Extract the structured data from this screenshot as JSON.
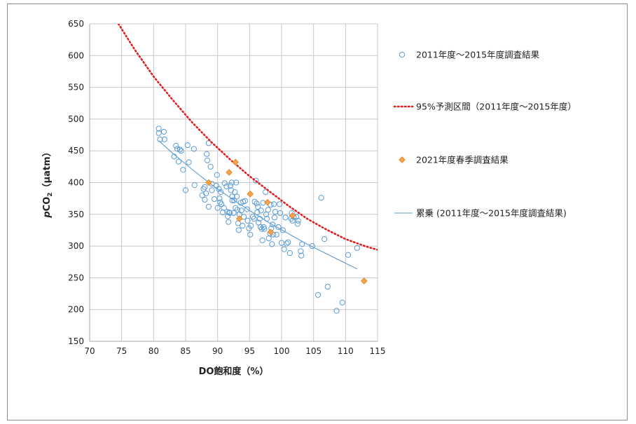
{
  "chart_data": {
    "type": "scatter",
    "xlabel": "DO飽和度（%）",
    "ylabel_parts": [
      "p",
      "CO",
      "2",
      "（µatm）"
    ],
    "xlim": [
      70,
      115
    ],
    "ylim": [
      150,
      650
    ],
    "xticks": [
      "70",
      "75",
      "80",
      "85",
      "90",
      "95",
      "100",
      "105",
      "110",
      "115"
    ],
    "yticks": [
      "150",
      "200",
      "250",
      "300",
      "350",
      "400",
      "450",
      "500",
      "550",
      "600",
      "650"
    ],
    "grid": true,
    "legend_position": "right",
    "series": [
      {
        "name": "2011年度～2015年度調査結果",
        "kind": "open-circle",
        "color": "#5b9bd5",
        "points": [
          [
            80.8,
            485
          ],
          [
            80.8,
            478
          ],
          [
            81.0,
            468
          ],
          [
            81.6,
            480
          ],
          [
            81.7,
            468
          ],
          [
            83.2,
            441
          ],
          [
            83.5,
            458
          ],
          [
            83.7,
            453
          ],
          [
            83.9,
            433
          ],
          [
            84.1,
            452
          ],
          [
            84.3,
            450
          ],
          [
            84.6,
            420
          ],
          [
            85.0,
            388
          ],
          [
            85.3,
            459
          ],
          [
            85.5,
            432
          ],
          [
            86.3,
            453
          ],
          [
            86.4,
            396
          ],
          [
            87.6,
            380
          ],
          [
            87.8,
            390
          ],
          [
            88.0,
            373
          ],
          [
            88.0,
            393
          ],
          [
            88.2,
            383
          ],
          [
            88.3,
            445
          ],
          [
            88.4,
            435
          ],
          [
            88.6,
            462
          ],
          [
            88.6,
            362
          ],
          [
            88.9,
            425
          ],
          [
            89.1,
            398
          ],
          [
            89.1,
            388
          ],
          [
            89.5,
            374
          ],
          [
            89.8,
            395
          ],
          [
            89.9,
            412
          ],
          [
            90.0,
            360
          ],
          [
            90.2,
            390
          ],
          [
            90.3,
            375
          ],
          [
            90.4,
            369
          ],
          [
            90.5,
            385
          ],
          [
            90.6,
            366
          ],
          [
            90.8,
            353
          ],
          [
            91.0,
            360
          ],
          [
            91.1,
            399
          ],
          [
            91.4,
            394
          ],
          [
            91.5,
            354
          ],
          [
            91.6,
            347
          ],
          [
            91.7,
            338
          ],
          [
            91.8,
            353
          ],
          [
            91.9,
            352
          ],
          [
            92.0,
            395
          ],
          [
            92.1,
            388
          ],
          [
            92.2,
            400
          ],
          [
            92.3,
            378
          ],
          [
            92.3,
            372
          ],
          [
            92.5,
            352
          ],
          [
            92.6,
            372
          ],
          [
            92.7,
            385
          ],
          [
            92.8,
            360
          ],
          [
            92.9,
            400
          ],
          [
            93.0,
            378
          ],
          [
            93.1,
            357
          ],
          [
            93.2,
            336
          ],
          [
            93.3,
            325
          ],
          [
            93.4,
            350
          ],
          [
            93.6,
            368
          ],
          [
            93.7,
            356
          ],
          [
            93.9,
            332
          ],
          [
            94.0,
            370
          ],
          [
            94.1,
            346
          ],
          [
            94.3,
            371
          ],
          [
            94.6,
            358
          ],
          [
            94.7,
            340
          ],
          [
            94.9,
            328
          ],
          [
            95.1,
            318
          ],
          [
            95.2,
            332
          ],
          [
            95.5,
            346
          ],
          [
            95.7,
            343
          ],
          [
            95.8,
            370
          ],
          [
            96.0,
            403
          ],
          [
            96.1,
            367
          ],
          [
            96.2,
            353
          ],
          [
            96.3,
            362
          ],
          [
            96.4,
            337
          ],
          [
            96.6,
            343
          ],
          [
            96.7,
            330
          ],
          [
            96.8,
            356
          ],
          [
            96.9,
            327
          ],
          [
            97.0,
            309
          ],
          [
            97.1,
            368
          ],
          [
            97.2,
            330
          ],
          [
            97.3,
            327
          ],
          [
            97.5,
            385
          ],
          [
            97.6,
            350
          ],
          [
            97.7,
            343
          ],
          [
            97.9,
            357
          ],
          [
            98.0,
            312
          ],
          [
            98.2,
            320
          ],
          [
            98.3,
            365
          ],
          [
            98.4,
            328
          ],
          [
            98.5,
            303
          ],
          [
            98.6,
            334
          ],
          [
            98.7,
            318
          ],
          [
            98.8,
            366
          ],
          [
            98.9,
            345
          ],
          [
            99.0,
            354
          ],
          [
            99.2,
            318
          ],
          [
            99.5,
            330
          ],
          [
            99.7,
            366
          ],
          [
            99.8,
            352
          ],
          [
            100.0,
            305
          ],
          [
            100.2,
            325
          ],
          [
            100.4,
            295
          ],
          [
            100.6,
            345
          ],
          [
            100.8,
            304
          ],
          [
            101.0,
            306
          ],
          [
            101.3,
            289
          ],
          [
            101.5,
            343
          ],
          [
            101.6,
            352
          ],
          [
            101.7,
            340
          ],
          [
            101.9,
            346
          ],
          [
            102.3,
            346
          ],
          [
            102.5,
            335
          ],
          [
            102.6,
            340
          ],
          [
            103.0,
            292
          ],
          [
            103.1,
            285
          ],
          [
            103.2,
            303
          ],
          [
            104.8,
            300
          ],
          [
            105.7,
            223
          ],
          [
            106.2,
            376
          ],
          [
            106.7,
            311
          ],
          [
            107.2,
            236
          ],
          [
            108.6,
            198
          ],
          [
            109.5,
            211
          ],
          [
            110.4,
            286
          ],
          [
            111.8,
            297
          ]
        ]
      },
      {
        "name": "95%予測区間（2011年度～2015年度）",
        "kind": "dotted-line",
        "color": "#e02020",
        "points": [
          [
            74.5,
            650
          ],
          [
            77,
            610
          ],
          [
            80,
            567
          ],
          [
            83,
            530
          ],
          [
            86,
            495
          ],
          [
            89,
            464
          ],
          [
            92,
            436
          ],
          [
            95,
            410
          ],
          [
            98,
            387
          ],
          [
            101,
            364
          ],
          [
            104,
            343
          ],
          [
            107,
            326
          ],
          [
            110,
            311
          ],
          [
            113,
            300
          ],
          [
            115,
            294
          ]
        ]
      },
      {
        "name": "2021年度春季調査結果",
        "kind": "diamond",
        "color": "#f5a44c",
        "points": [
          [
            88.6,
            400
          ],
          [
            91.8,
            416
          ],
          [
            92.8,
            432
          ],
          [
            93.4,
            343
          ],
          [
            95.1,
            382
          ],
          [
            97.8,
            369
          ],
          [
            98.3,
            322
          ],
          [
            101.7,
            348
          ],
          [
            112.9,
            245
          ]
        ]
      },
      {
        "name": "累乗 (2011年度～2015年度調査結果)",
        "kind": "trend-line",
        "color": "#5b9bd5",
        "points": [
          [
            80.8,
            466
          ],
          [
            83,
            446
          ],
          [
            86,
            421
          ],
          [
            89,
            397
          ],
          [
            92,
            376
          ],
          [
            95,
            356
          ],
          [
            98,
            337
          ],
          [
            101,
            320
          ],
          [
            104,
            303
          ],
          [
            107,
            288
          ],
          [
            110,
            273
          ],
          [
            111.8,
            264
          ]
        ]
      }
    ]
  }
}
